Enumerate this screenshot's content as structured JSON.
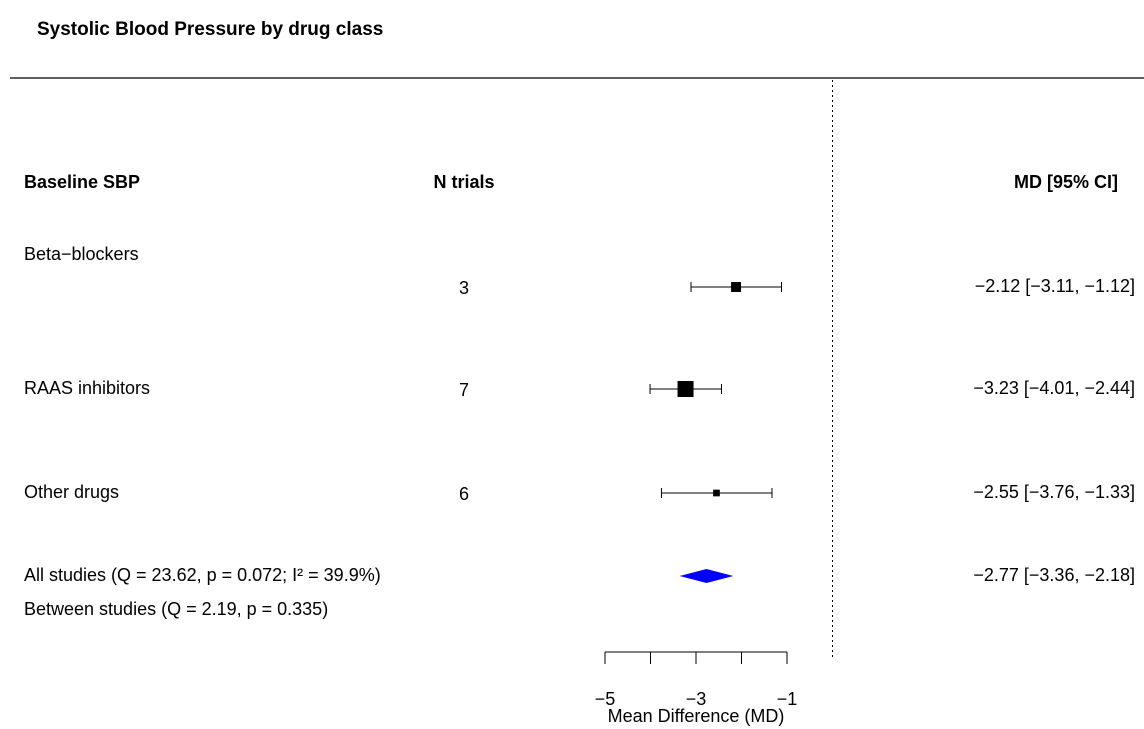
{
  "chart_data": {
    "type": "forest",
    "title": "Systolic Blood Pressure by drug class",
    "column_headers": [
      "Baseline SBP",
      "N trials",
      "MD [95% CI]"
    ],
    "categories": [
      "Beta−blockers",
      "RAAS inhibitors",
      "Other drugs"
    ],
    "n_trials": [
      3,
      7,
      6
    ],
    "values": [
      -2.12,
      -3.23,
      -2.55
    ],
    "lower": [
      -3.11,
      -4.01,
      -3.76
    ],
    "upper": [
      -1.12,
      -2.44,
      -1.33
    ],
    "value_labels": [
      "−2.12 [−3.11, −1.12]",
      "−3.23 [−4.01, −2.44]",
      "−2.55 [−3.76, −1.33]"
    ],
    "color": "#000000",
    "summary": {
      "label": "All studies (Q = 23.62, p = 0.072; I² = 39.9%)",
      "value": -2.77,
      "lower": -3.36,
      "upper": -2.18,
      "value_label": "−2.77 [−3.36, −2.18]",
      "color": "#0000ff"
    },
    "between_label": "Between studies (Q = 2.19, p = 0.335)",
    "xlabel": "Mean Difference (MD)",
    "reference_line": 0,
    "xlim": [
      -5,
      -1
    ],
    "xticks": [
      {
        "value": -5,
        "label": "−5"
      },
      {
        "value": -3,
        "label": "−3"
      },
      {
        "value": -1,
        "label": "−1"
      }
    ],
    "xminor_ticks": [
      -4,
      -2
    ]
  }
}
